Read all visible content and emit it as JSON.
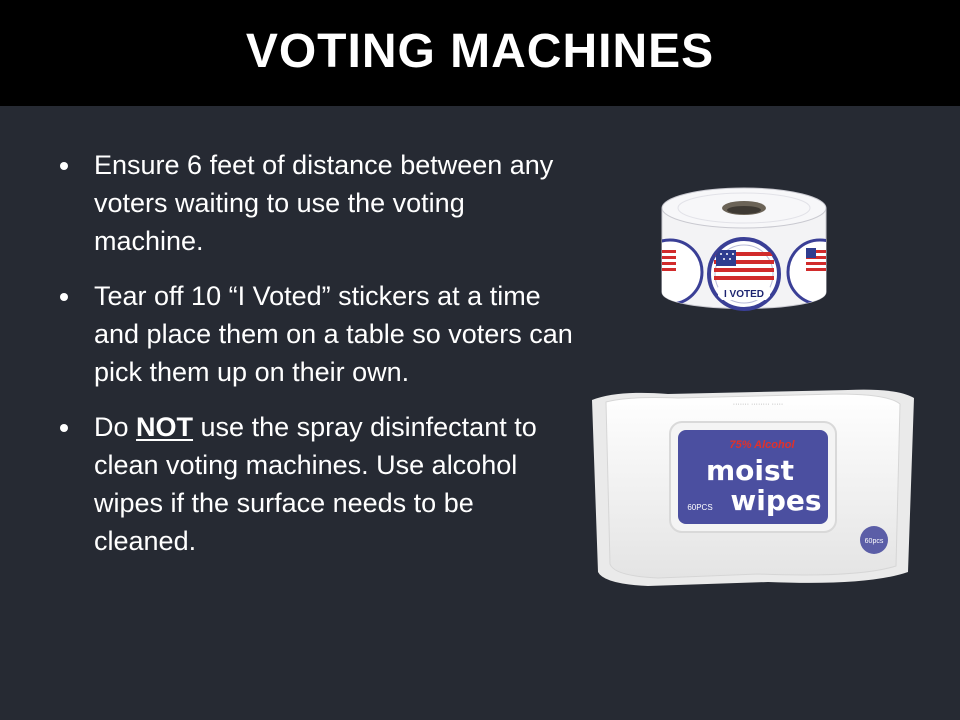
{
  "slide": {
    "title": "VOTING MACHINES",
    "colors": {
      "background": "#262a33",
      "title_bar": "#000000",
      "text": "#ffffff",
      "wipes_label": "#4b4fa0",
      "label_accent": "#e0312a"
    }
  },
  "bullets": [
    {
      "text": "Ensure 6 feet of distance between any voters waiting to use the voting machine."
    },
    {
      "text": "Tear off 10 “I Voted” stickers at a time and place them on a table so voters can pick them up on their own."
    },
    {
      "before": "Do ",
      "emphasis": "NOT",
      "after": " use the spray disinfectant to clean voting machines. Use alcohol wipes if the surface needs to be cleaned."
    }
  ],
  "images": {
    "stickers": {
      "icon": "i-voted-sticker-roll",
      "label": "I VOTED"
    },
    "wipes": {
      "icon": "alcohol-wipes-pack",
      "alcohol_label": "75% Alcohol",
      "brand_line1": "moist",
      "brand_line2": "wipes",
      "count_label": "60PCS",
      "corner_label": "60pcs"
    }
  }
}
